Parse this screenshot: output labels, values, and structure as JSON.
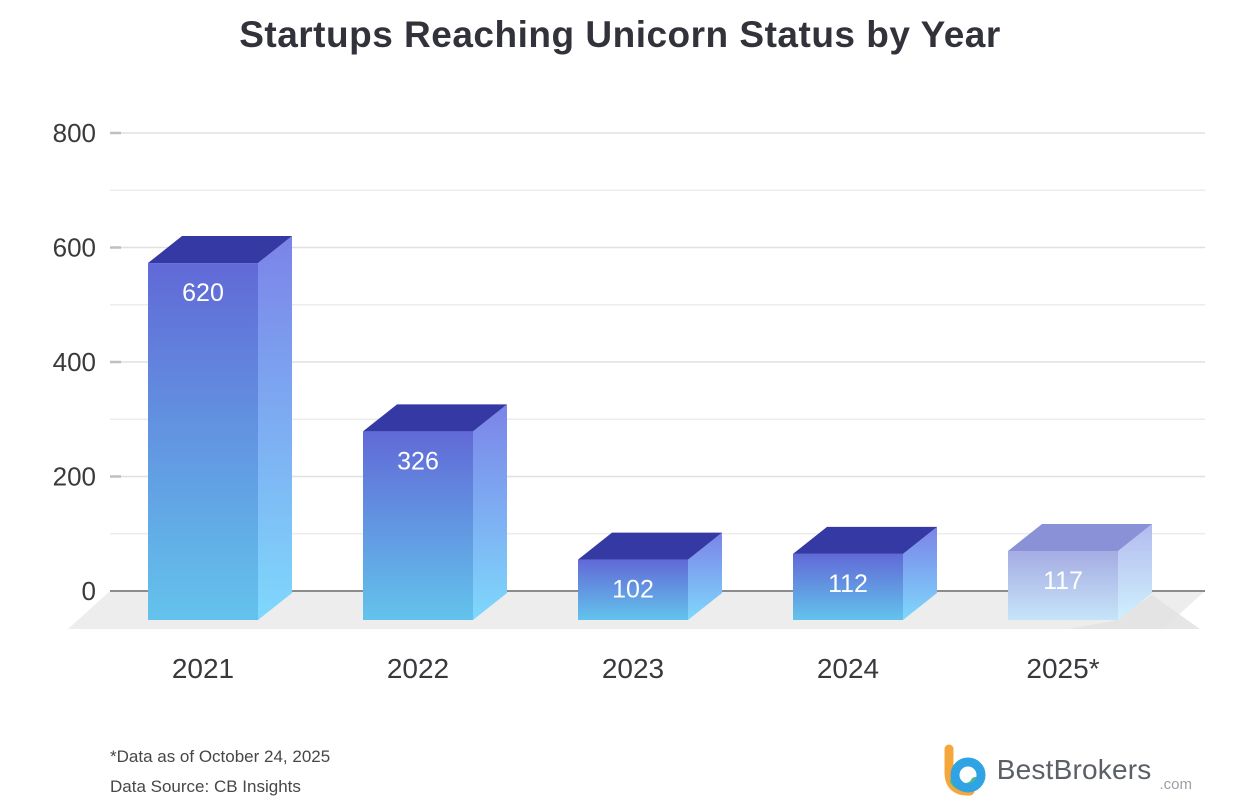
{
  "title": "Startups Reaching Unicorn Status by Year",
  "footnotes": {
    "asterisk_note": "*Data as of October 24, 2025",
    "source_note": "Data Source: CB Insights"
  },
  "logo": {
    "brand": "BestBrokers",
    "tld": ".com",
    "icon_colors": {
      "orange": "#F5A73B",
      "blue": "#2FA3E3",
      "teal": "#48B89A"
    }
  },
  "chart_data": {
    "type": "bar",
    "variant": "3d-column",
    "title": "Startups Reaching Unicorn Status by Year",
    "categories": [
      "2021",
      "2022",
      "2023",
      "2024",
      "2025*"
    ],
    "values": [
      620,
      326,
      102,
      112,
      117
    ],
    "value_labels": [
      "620",
      "326",
      "102",
      "112",
      "117"
    ],
    "xlabel": "",
    "ylabel": "",
    "ylim": [
      0,
      800
    ],
    "yticks": [
      0,
      200,
      400,
      600,
      800
    ],
    "minor_grid_step": 100,
    "grid": true,
    "legend": false,
    "last_bar_highlighted_lighter": true,
    "colors": {
      "bar_top": "#3439a3",
      "bar_front_top": "#6169d7",
      "bar_front_bottom": "#63c3ec",
      "bar_side_top": "#7b83e8",
      "bar_side_bottom": "#7fd8fc",
      "last_bar_top": "#8a91d7",
      "last_bar_front_top": "#a5ace2",
      "last_bar_front_bottom": "#c6e4f9",
      "last_bar_side_top": "#b3bbee",
      "last_bar_side_bottom": "#cff0fe",
      "floor": "#ededed",
      "shadow": "#e2e2e2",
      "grid_minor": "#ececec",
      "grid_major": "#e0e0e0",
      "axis_line": "#8c8c8c",
      "tick_label": "#3a3a3a",
      "category_label": "#39393d",
      "value_label": "#ffffff"
    }
  }
}
